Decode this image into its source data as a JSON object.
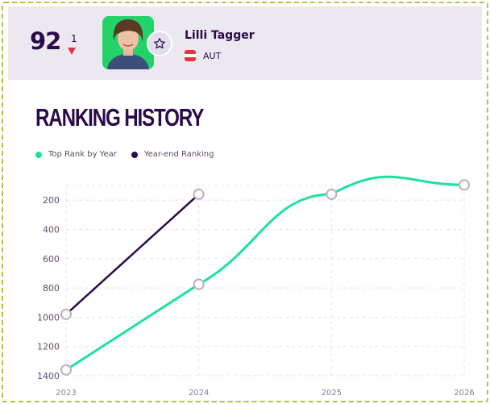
{
  "player": {
    "rank": "92",
    "rank_change": "1",
    "rank_change_direction": "down",
    "name": "Lilli Tagger",
    "country": "AUT",
    "flag_colors": [
      "#e5333f",
      "#ffffff",
      "#e5333f"
    ],
    "favorite_icon": "star-icon"
  },
  "section": {
    "title": "RANKING HISTORY"
  },
  "legend": [
    {
      "label": "Top Rank by Year",
      "color": "#1fe0a4"
    },
    {
      "label": "Year-end Ranking",
      "color": "#2a0b4a"
    }
  ],
  "chart_data": {
    "type": "line",
    "x": [
      "2023",
      "2024",
      "2025",
      "2026"
    ],
    "y_inverted": true,
    "ylim": [
      1400,
      100
    ],
    "yticks": [
      200,
      400,
      600,
      800,
      1000,
      1200,
      1400
    ],
    "xticks": [
      "2023",
      "2024",
      "2025",
      "2026"
    ],
    "grid": true,
    "legend_position": "top-left",
    "series": [
      {
        "name": "Top Rank by Year",
        "color": "#1fe0a4",
        "values": [
          1360,
          775,
          160,
          96
        ]
      },
      {
        "name": "Year-end Ranking",
        "color": "#2a0b4a",
        "values": [
          980,
          160,
          null,
          null
        ]
      }
    ]
  }
}
